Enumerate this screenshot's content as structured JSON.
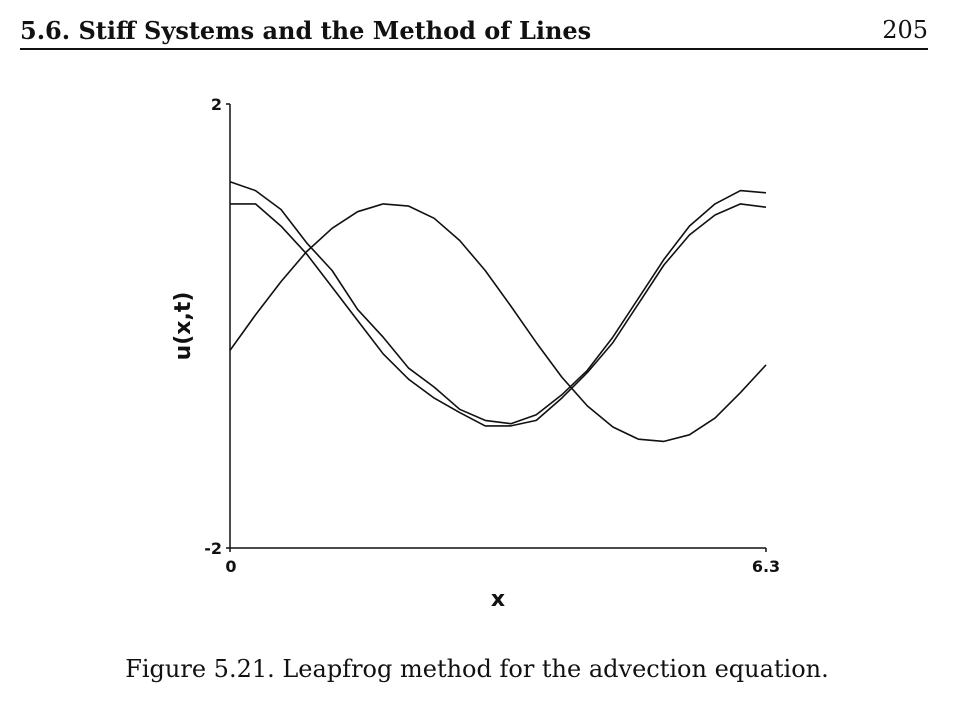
{
  "header": {
    "section_title": "5.6. Stiff Systems and the Method of Lines",
    "page_number": "205"
  },
  "caption": "Figure 5.21. Leapfrog method for the advection equation.",
  "chart_data": {
    "type": "line",
    "title": "",
    "xlabel": "x",
    "ylabel": "u(x,t)",
    "xlim": [
      0,
      6.3
    ],
    "ylim": [
      -2,
      2
    ],
    "x_ticks": [
      "0",
      "6.3"
    ],
    "y_ticks": [
      "2",
      "-2"
    ],
    "grid": false,
    "series": [
      {
        "x": [
          0,
          0.3,
          0.6,
          0.9,
          1.2,
          1.5,
          1.8,
          2.1,
          2.4,
          2.7,
          3.0,
          3.3,
          3.6,
          3.9,
          4.2,
          4.5,
          4.8,
          5.1,
          5.4,
          5.7,
          6.0,
          6.3
        ],
        "y": [
          -0.22,
          0.1,
          0.4,
          0.67,
          0.88,
          1.03,
          1.1,
          1.08,
          0.97,
          0.77,
          0.5,
          0.18,
          -0.15,
          -0.46,
          -0.72,
          -0.91,
          -1.02,
          -1.04,
          -0.98,
          -0.83,
          -0.6,
          -0.35
        ]
      },
      {
        "x": [
          0,
          0.3,
          0.6,
          0.9,
          1.2,
          1.5,
          1.8,
          2.1,
          2.4,
          2.7,
          3.0,
          3.3,
          3.6,
          3.9,
          4.2,
          4.5,
          4.8,
          5.1,
          5.4,
          5.7,
          6.0,
          6.3
        ],
        "y": [
          1.3,
          1.22,
          1.05,
          0.75,
          0.5,
          0.15,
          -0.1,
          -0.38,
          -0.55,
          -0.75,
          -0.85,
          -0.88,
          -0.8,
          -0.62,
          -0.4,
          -0.1,
          0.25,
          0.6,
          0.9,
          1.1,
          1.22,
          1.2
        ]
      },
      {
        "x": [
          0,
          0.3,
          0.6,
          0.9,
          1.2,
          1.5,
          1.8,
          2.1,
          2.4,
          2.7,
          3.0,
          3.3,
          3.6,
          3.9,
          4.2,
          4.5,
          4.8,
          5.1,
          5.4,
          5.7,
          6.0,
          6.3
        ],
        "y": [
          1.1,
          1.1,
          0.9,
          0.65,
          0.35,
          0.05,
          -0.25,
          -0.48,
          -0.65,
          -0.78,
          -0.9,
          -0.9,
          -0.85,
          -0.65,
          -0.42,
          -0.15,
          0.2,
          0.55,
          0.82,
          1.0,
          1.1,
          1.07
        ]
      }
    ]
  }
}
